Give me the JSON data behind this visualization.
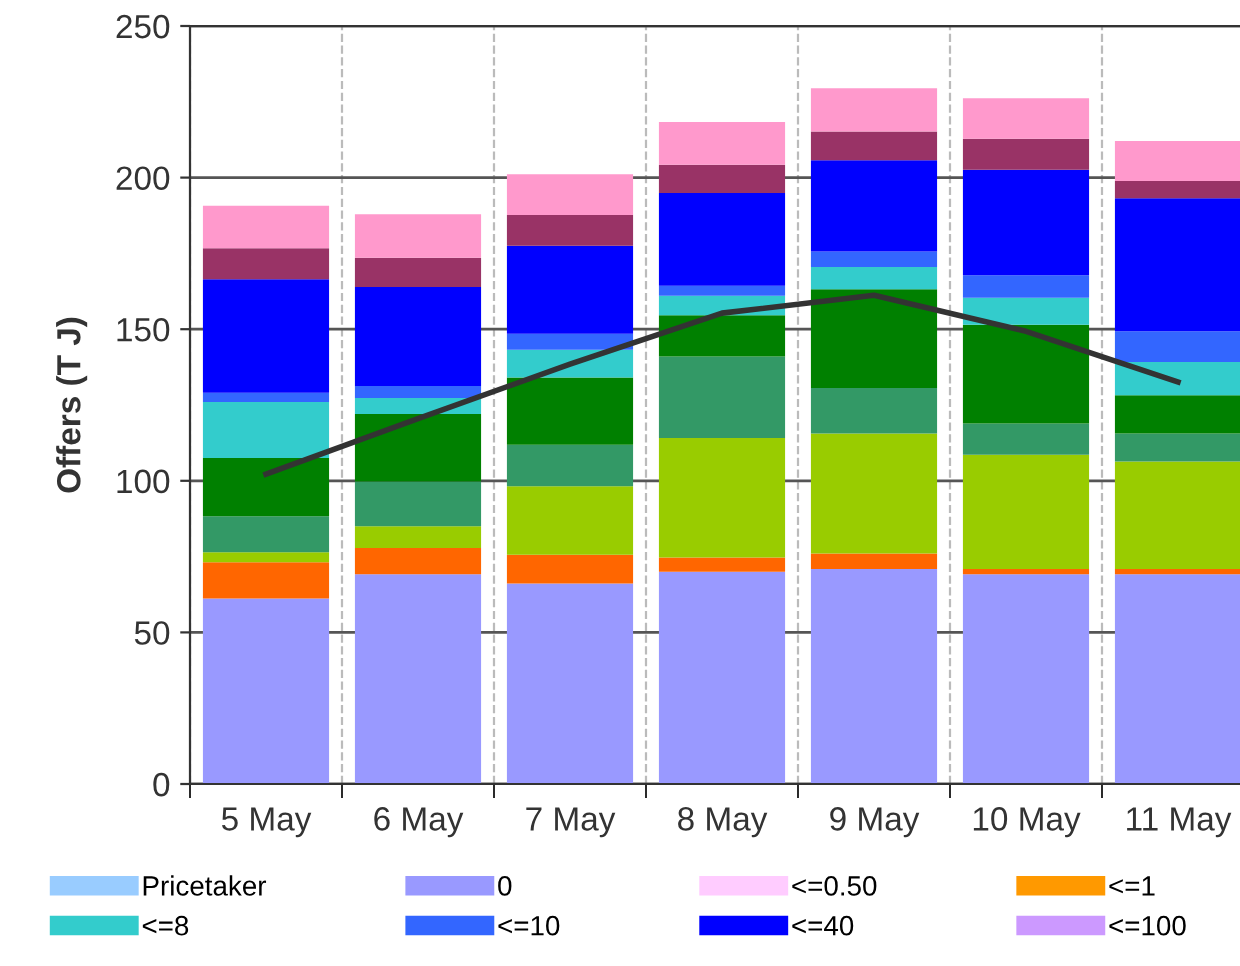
{
  "chart_data": {
    "type": "bar",
    "stacked": true,
    "ylabel": "Offers (T J)",
    "categories": [
      "5 May",
      "6 May",
      "7 May",
      "8 May",
      "9 May",
      "10 May",
      "11 May"
    ],
    "ylim": [
      0,
      250
    ],
    "yticks": [
      0,
      50,
      100,
      150,
      200,
      250
    ],
    "grid": true,
    "legend": "bottom",
    "series": [
      {
        "name": "Pricetaker",
        "color": "#99ccff",
        "values": [
          0,
          0,
          0,
          0,
          0,
          0,
          0
        ]
      },
      {
        "name": "0",
        "color": "#9999ff",
        "values": [
          61.2,
          69.2,
          66.1,
          70.0,
          70.9,
          69.2,
          69.2
        ]
      },
      {
        "name": "<=0.50",
        "color": "#ffccff",
        "values": [
          0,
          0,
          0,
          0,
          0,
          0,
          0
        ]
      },
      {
        "name": "<=1",
        "color": "#ff9900",
        "values": [
          0,
          0,
          0,
          0,
          0,
          0,
          0
        ]
      },
      {
        "color": "#ff6600",
        "values": [
          11.9,
          8.6,
          9.5,
          4.7,
          5.1,
          1.7,
          1.7
        ]
      },
      {
        "color": "#99cc00",
        "values": [
          3.3,
          7.2,
          22.6,
          39.4,
          39.6,
          37.7,
          35.5
        ]
      },
      {
        "color": "#339966",
        "values": [
          11.9,
          14.8,
          13.7,
          26.9,
          15.0,
          10.3,
          9.2
        ]
      },
      {
        "color": "#008000",
        "values": [
          19.2,
          22.2,
          22.2,
          13.6,
          32.6,
          32.6,
          12.6
        ]
      },
      {
        "name": "<=8",
        "color": "#33cccc",
        "values": [
          18.5,
          5.3,
          9.1,
          6.4,
          7.3,
          8.9,
          11.0
        ]
      },
      {
        "name": "<=10",
        "color": "#3366ff",
        "values": [
          3.0,
          4.0,
          5.3,
          3.3,
          5.1,
          7.4,
          10.1
        ]
      },
      {
        "name": "<=40",
        "color": "#0000ff",
        "values": [
          37.5,
          32.6,
          29.0,
          30.6,
          30.1,
          34.8,
          43.9
        ]
      },
      {
        "name": "<=100",
        "color": "#cc99ff",
        "values": [
          0,
          0,
          0,
          0,
          0,
          0,
          0
        ]
      },
      {
        "color": "#993366",
        "values": [
          10.2,
          9.7,
          10.2,
          9.3,
          9.5,
          10.2,
          5.7
        ]
      },
      {
        "color": "#ff99cc",
        "values": [
          14.0,
          14.3,
          13.4,
          14.1,
          14.3,
          13.4,
          13.2
        ]
      },
      {
        "type": "line",
        "color": "#333333",
        "marker": "none",
        "values": [
          102.2,
          120.5,
          138.5,
          155.3,
          161.2,
          149.3,
          132.6
        ]
      }
    ]
  }
}
